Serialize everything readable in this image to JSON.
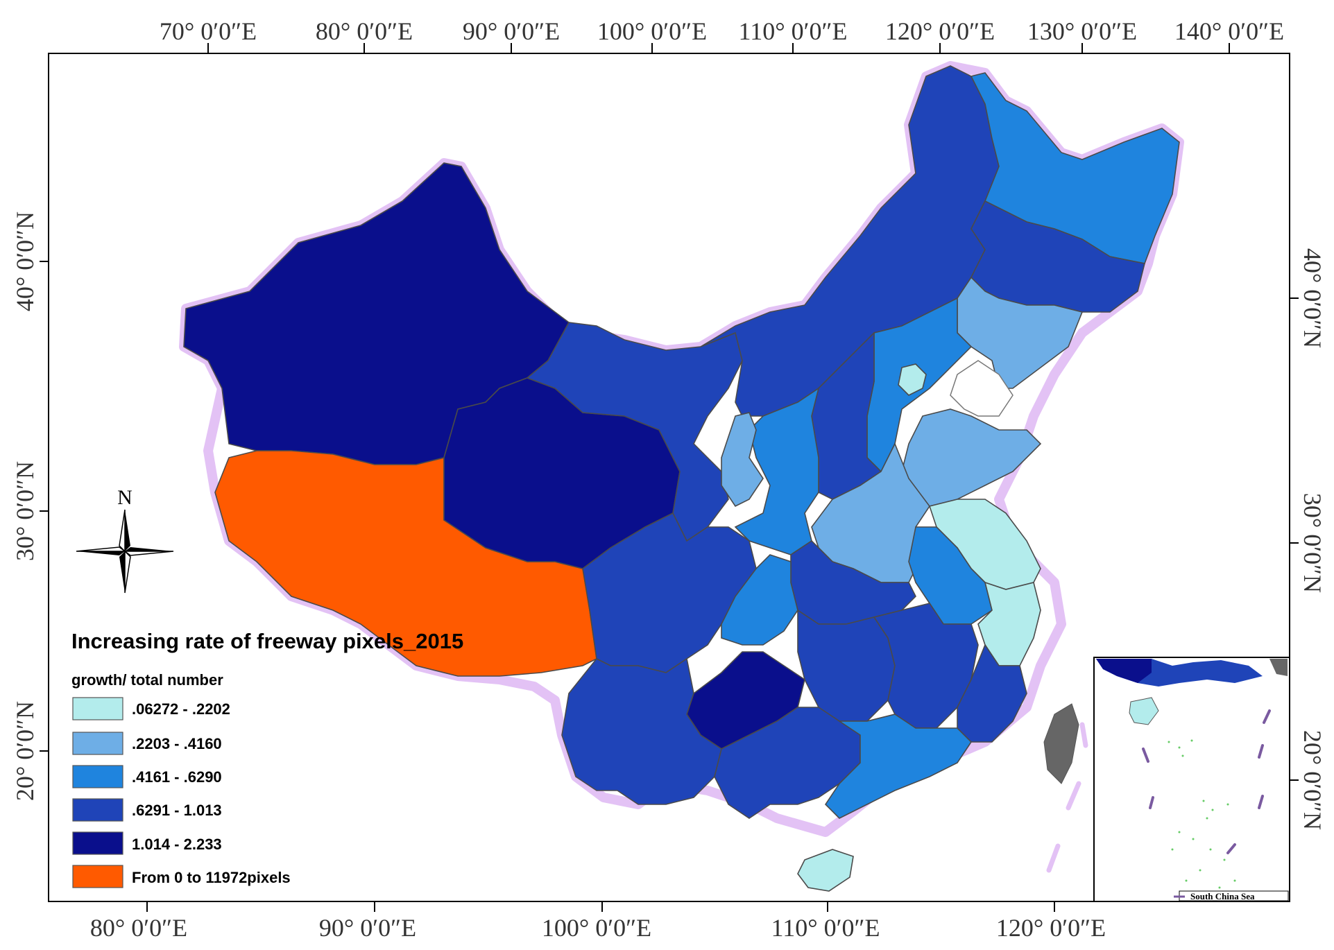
{
  "map": {
    "top_ticks": [
      "70° 0′0″E",
      "80° 0′0″E",
      "90° 0′0″E",
      "100° 0′0″E",
      "110° 0′0″E",
      "120° 0′0″E",
      "130° 0′0″E",
      "140° 0′0″E"
    ],
    "bottom_ticks": [
      "80° 0′0″E",
      "90° 0′0″E",
      "100° 0′0″E",
      "110° 0′0″E",
      "120° 0′0″E"
    ],
    "left_ticks": [
      "40° 0′0″N",
      "30° 0′0″N",
      "20° 0′0″N"
    ],
    "right_ticks": [
      "40° 0′0″N",
      "30° 0′0″N",
      "20° 0′0″N"
    ],
    "north_arrow": "N",
    "inset_label": "South China Sea"
  },
  "legend": {
    "title": "Increasing rate of freeway pixels_2015",
    "subtitle": "growth/ total number",
    "classes": [
      {
        "label": ".06272 - .2202",
        "color": "#b3ecec"
      },
      {
        "label": ".2203 - .4160",
        "color": "#6eaee6"
      },
      {
        "label": ".4161 - .6290",
        "color": "#1f84de"
      },
      {
        "label": ".6291 - 1.013",
        "color": "#1f44b8"
      },
      {
        "label": "1.014 - 2.233",
        "color": "#0a0f8c"
      },
      {
        "label": "From 0 to 11972pixels",
        "color": "#ff5a00"
      }
    ]
  }
}
